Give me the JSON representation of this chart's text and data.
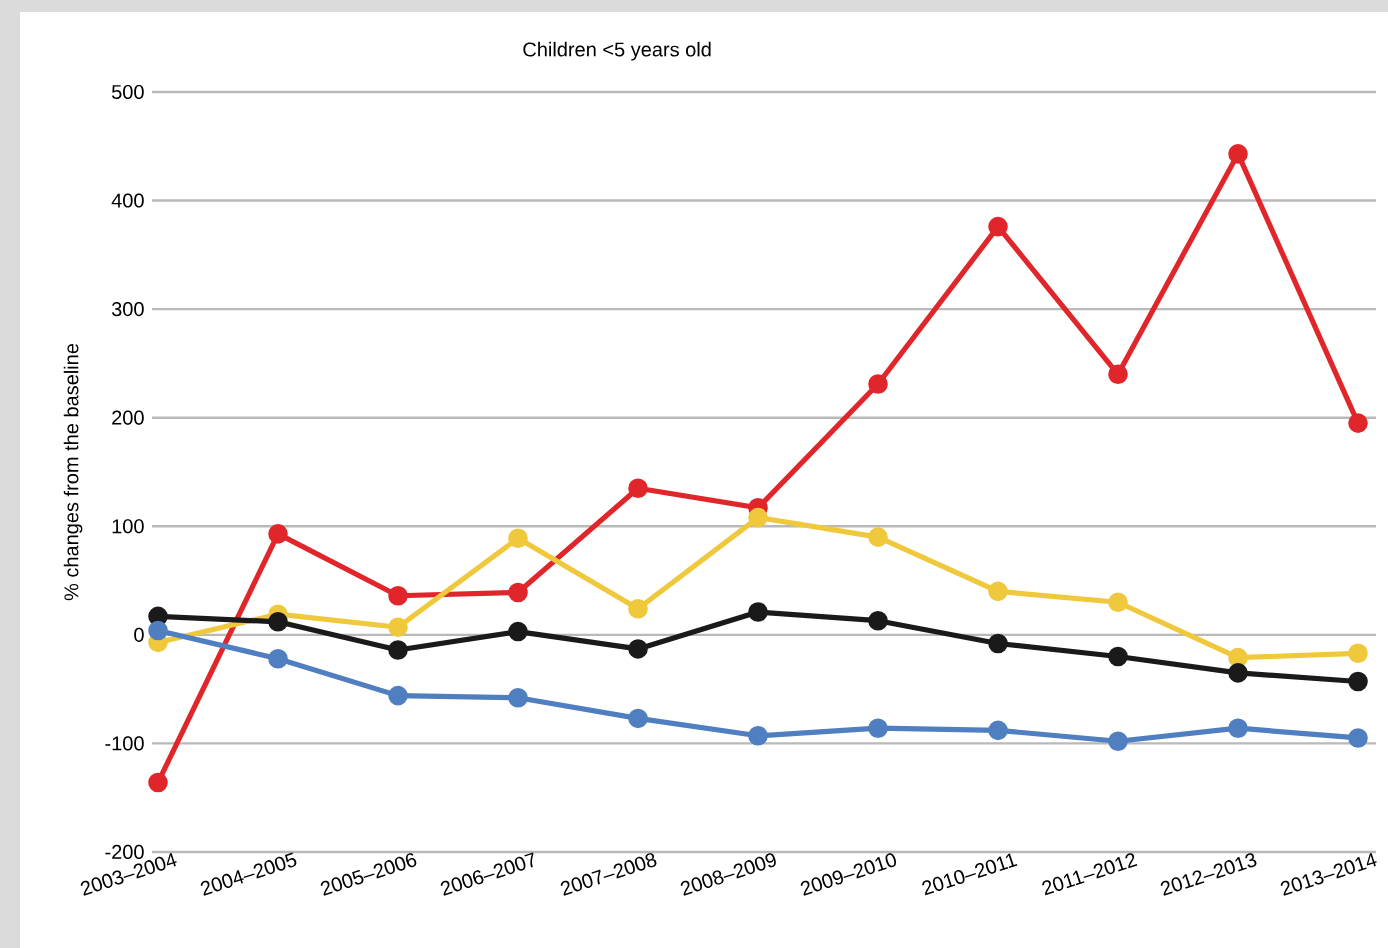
{
  "chart_data": {
    "type": "line",
    "title": "Children <5 years old",
    "ylabel": "% changes from the baseline",
    "categories": [
      "2003–2004",
      "2004–2005",
      "2005–2006",
      "2006–2007",
      "2007–2008",
      "2008–2009",
      "2009–2010",
      "2010–2011",
      "2011–2012",
      "2012–2013",
      "2013–2014"
    ],
    "series": [
      {
        "color": "#e0262b",
        "values": [
          -136,
          93,
          36,
          39,
          135,
          117,
          231,
          376,
          240,
          443,
          195
        ]
      },
      {
        "color": "#f0c83c",
        "values": [
          -7,
          19,
          7,
          89,
          24,
          108,
          90,
          40,
          30,
          -21,
          -17
        ]
      },
      {
        "color": "#1a1a1a",
        "values": [
          17,
          12,
          -14,
          3,
          -13,
          21,
          13,
          -8,
          -20,
          -35,
          -43
        ]
      },
      {
        "color": "#4f7fc0",
        "values": [
          4,
          -22,
          -56,
          -58,
          -77,
          -93,
          -86,
          -88,
          -98,
          -86,
          -95
        ]
      }
    ],
    "ylim": [
      -200,
      500
    ],
    "yticks": [
      -200,
      -100,
      0,
      100,
      200,
      300,
      400,
      500
    ],
    "grid": "y",
    "marker": "circle",
    "line_style": "solid"
  }
}
